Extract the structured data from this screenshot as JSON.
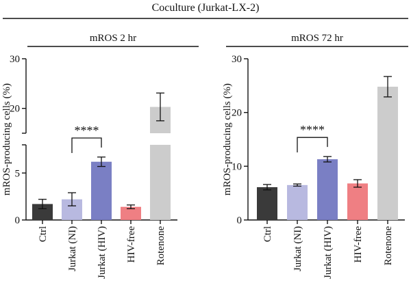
{
  "figure_title": "Coculture (Jurkat-LX-2)",
  "chart_data": [
    {
      "type": "bar",
      "title": "mROS 2 hr",
      "ylabel": "mROS-producing cells (%)",
      "xlabel": "",
      "categories": [
        "Ctrl",
        "Jurkat (NI)",
        "Jurkat (HIV)",
        "HIV-free",
        "Rotenone"
      ],
      "values": [
        1.7,
        2.2,
        6.2,
        1.4,
        20.3
      ],
      "errors": [
        0.5,
        0.7,
        0.5,
        0.2,
        2.8
      ],
      "colors": [
        "#3a3a3a",
        "#b8b9e0",
        "#7a7fc4",
        "#ef7f83",
        "#cccccc"
      ],
      "axis_break": true,
      "ylim_lower": [
        0,
        8
      ],
      "ylim_upper": [
        15,
        30
      ],
      "yticks": [
        "0",
        "5",
        "20",
        "30"
      ],
      "significance": {
        "from": "Jurkat (NI)",
        "to": "Jurkat (HIV)",
        "label": "****"
      },
      "grid": false,
      "legend": "none"
    },
    {
      "type": "bar",
      "title": "mROS 72 hr",
      "ylabel": "mROS-producing cells (%)",
      "xlabel": "",
      "categories": [
        "Ctrl",
        "Jurkat (NI)",
        "Jurkat (HIV)",
        "HIV-free",
        "Rotenone"
      ],
      "values": [
        6.1,
        6.5,
        11.3,
        6.8,
        24.8
      ],
      "errors": [
        0.5,
        0.2,
        0.5,
        0.7,
        1.9
      ],
      "colors": [
        "#3a3a3a",
        "#b8b9e0",
        "#7a7fc4",
        "#ef7f83",
        "#cccccc"
      ],
      "axis_break": false,
      "ylim": [
        0,
        30
      ],
      "yticks": [
        "0",
        "10",
        "20",
        "30"
      ],
      "significance": {
        "from": "Jurkat (NI)",
        "to": "Jurkat (HIV)",
        "label": "****"
      },
      "grid": false,
      "legend": "none"
    }
  ]
}
